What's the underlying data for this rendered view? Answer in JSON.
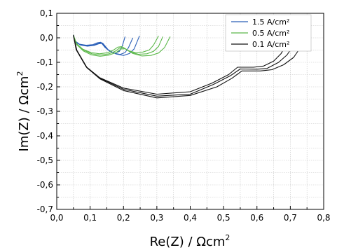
{
  "chart_data": {
    "type": "line",
    "title": "",
    "xlabel": "Re(Z) / Ωcm",
    "xlabel_superscript": "2",
    "ylabel": "Im(Z) / Ωcm",
    "ylabel_superscript": "2",
    "xlim": [
      0.0,
      0.8
    ],
    "ylim": [
      0.1,
      -0.7
    ],
    "y_inverted": true,
    "grid": true,
    "legend_position": "top-right",
    "x_ticks": [
      0.0,
      0.1,
      0.2,
      0.3,
      0.4,
      0.5,
      0.6,
      0.7,
      0.8
    ],
    "x_tick_labels": [
      "0,0",
      "0,1",
      "0,2",
      "0,3",
      "0,4",
      "0,5",
      "0,6",
      "0,7",
      "0,8"
    ],
    "y_ticks": [
      0.1,
      0.0,
      -0.1,
      -0.2,
      -0.3,
      -0.4,
      -0.5,
      -0.6,
      -0.7
    ],
    "y_tick_labels": [
      "0,1",
      "0,0",
      "-0,1",
      "-0,2",
      "-0,3",
      "-0,4",
      "-0,5",
      "-0,6",
      "-0,7"
    ],
    "series": [
      {
        "name": "1.5 A/cm²",
        "color": "#2a5fb8",
        "curves": [
          [
            [
              0.05,
              0.01
            ],
            [
              0.055,
              -0.015
            ],
            [
              0.07,
              -0.028
            ],
            [
              0.09,
              -0.032
            ],
            [
              0.11,
              -0.03
            ],
            [
              0.125,
              -0.022
            ],
            [
              0.135,
              -0.02
            ],
            [
              0.15,
              -0.045
            ],
            [
              0.17,
              -0.062
            ],
            [
              0.19,
              -0.068
            ],
            [
              0.205,
              -0.06
            ],
            [
              0.215,
              -0.04
            ],
            [
              0.228,
              0.0
            ]
          ],
          [
            [
              0.05,
              0.008
            ],
            [
              0.056,
              -0.018
            ],
            [
              0.072,
              -0.03
            ],
            [
              0.092,
              -0.034
            ],
            [
              0.112,
              -0.031
            ],
            [
              0.127,
              -0.024
            ],
            [
              0.138,
              -0.022
            ],
            [
              0.155,
              -0.05
            ],
            [
              0.178,
              -0.066
            ],
            [
              0.2,
              -0.072
            ],
            [
              0.218,
              -0.064
            ],
            [
              0.232,
              -0.045
            ],
            [
              0.248,
              0.008
            ]
          ],
          [
            [
              0.05,
              0.012
            ],
            [
              0.054,
              -0.012
            ],
            [
              0.068,
              -0.026
            ],
            [
              0.088,
              -0.03
            ],
            [
              0.108,
              -0.028
            ],
            [
              0.122,
              -0.02
            ],
            [
              0.132,
              -0.018
            ],
            [
              0.145,
              -0.04
            ],
            [
              0.16,
              -0.056
            ],
            [
              0.175,
              -0.062
            ],
            [
              0.188,
              -0.055
            ],
            [
              0.196,
              -0.035
            ],
            [
              0.205,
              0.005
            ]
          ]
        ]
      },
      {
        "name": "0.5 A/cm²",
        "color": "#5cb84a",
        "curves": [
          [
            [
              0.05,
              0.01
            ],
            [
              0.06,
              -0.025
            ],
            [
              0.08,
              -0.05
            ],
            [
              0.105,
              -0.065
            ],
            [
              0.13,
              -0.07
            ],
            [
              0.155,
              -0.066
            ],
            [
              0.175,
              -0.055
            ],
            [
              0.188,
              -0.042
            ],
            [
              0.2,
              -0.04
            ],
            [
              0.22,
              -0.058
            ],
            [
              0.245,
              -0.067
            ],
            [
              0.27,
              -0.065
            ],
            [
              0.29,
              -0.055
            ],
            [
              0.305,
              -0.035
            ],
            [
              0.318,
              0.005
            ]
          ],
          [
            [
              0.05,
              0.008
            ],
            [
              0.06,
              -0.028
            ],
            [
              0.08,
              -0.054
            ],
            [
              0.105,
              -0.07
            ],
            [
              0.13,
              -0.075
            ],
            [
              0.155,
              -0.071
            ],
            [
              0.178,
              -0.06
            ],
            [
              0.192,
              -0.046
            ],
            [
              0.205,
              -0.044
            ],
            [
              0.228,
              -0.064
            ],
            [
              0.255,
              -0.074
            ],
            [
              0.282,
              -0.072
            ],
            [
              0.305,
              -0.062
            ],
            [
              0.323,
              -0.04
            ],
            [
              0.34,
              0.005
            ]
          ],
          [
            [
              0.05,
              0.012
            ],
            [
              0.058,
              -0.022
            ],
            [
              0.078,
              -0.046
            ],
            [
              0.102,
              -0.06
            ],
            [
              0.128,
              -0.065
            ],
            [
              0.152,
              -0.061
            ],
            [
              0.17,
              -0.05
            ],
            [
              0.183,
              -0.038
            ],
            [
              0.195,
              -0.036
            ],
            [
              0.213,
              -0.052
            ],
            [
              0.235,
              -0.06
            ],
            [
              0.258,
              -0.058
            ],
            [
              0.277,
              -0.05
            ],
            [
              0.29,
              -0.03
            ],
            [
              0.305,
              0.008
            ]
          ]
        ]
      },
      {
        "name": "0.1 A/cm²",
        "color": "#111111",
        "curves": [
          [
            [
              0.05,
              0.01
            ],
            [
              0.06,
              -0.05
            ],
            [
              0.09,
              -0.12
            ],
            [
              0.13,
              -0.165
            ],
            [
              0.2,
              -0.21
            ],
            [
              0.3,
              -0.238
            ],
            [
              0.4,
              -0.23
            ],
            [
              0.47,
              -0.19
            ],
            [
              0.52,
              -0.155
            ],
            [
              0.55,
              -0.127
            ],
            [
              0.6,
              -0.128
            ],
            [
              0.63,
              -0.125
            ],
            [
              0.665,
              -0.1
            ],
            [
              0.69,
              -0.07
            ],
            [
              0.705,
              -0.04
            ],
            [
              0.715,
              0.005
            ]
          ],
          [
            [
              0.05,
              0.008
            ],
            [
              0.06,
              -0.052
            ],
            [
              0.09,
              -0.122
            ],
            [
              0.13,
              -0.168
            ],
            [
              0.2,
              -0.215
            ],
            [
              0.3,
              -0.245
            ],
            [
              0.4,
              -0.235
            ],
            [
              0.48,
              -0.2
            ],
            [
              0.525,
              -0.165
            ],
            [
              0.555,
              -0.135
            ],
            [
              0.61,
              -0.135
            ],
            [
              0.645,
              -0.13
            ],
            [
              0.68,
              -0.11
            ],
            [
              0.71,
              -0.08
            ],
            [
              0.725,
              -0.05
            ],
            [
              0.738,
              0.005
            ]
          ],
          [
            [
              0.05,
              0.012
            ],
            [
              0.058,
              -0.048
            ],
            [
              0.088,
              -0.118
            ],
            [
              0.128,
              -0.162
            ],
            [
              0.2,
              -0.205
            ],
            [
              0.3,
              -0.23
            ],
            [
              0.4,
              -0.22
            ],
            [
              0.465,
              -0.185
            ],
            [
              0.515,
              -0.15
            ],
            [
              0.542,
              -0.12
            ],
            [
              0.59,
              -0.12
            ],
            [
              0.62,
              -0.115
            ],
            [
              0.65,
              -0.095
            ],
            [
              0.672,
              -0.065
            ],
            [
              0.685,
              -0.035
            ],
            [
              0.695,
              0.008
            ]
          ]
        ]
      }
    ]
  }
}
